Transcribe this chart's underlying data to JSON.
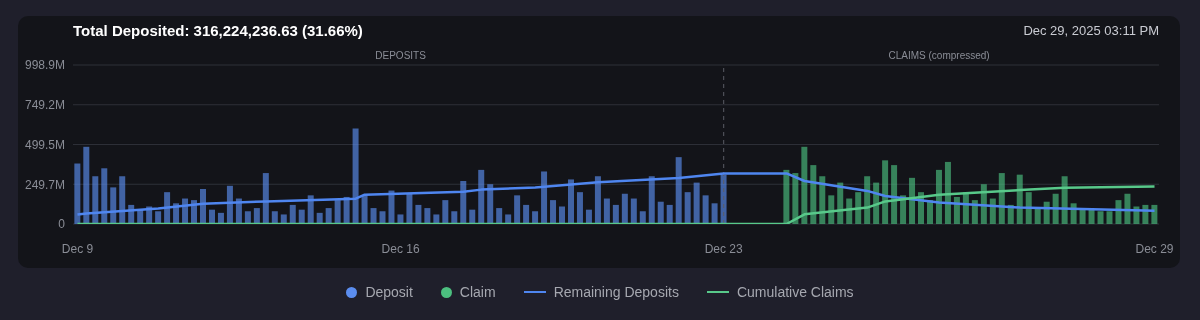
{
  "chart_data": {
    "type": "bar",
    "title": "Total Deposited: 316,224,236.63 (31.66%)",
    "annotations": [
      "Dec 29, 2025 03:11 PM",
      "DEPOSITS",
      "CLAIMS (compressed)"
    ],
    "categories": [
      "Dec 9",
      null,
      null,
      null,
      null,
      null,
      null,
      null,
      null,
      null,
      null,
      null,
      null,
      null,
      null,
      null,
      null,
      null,
      null,
      null,
      null,
      null,
      null,
      null,
      null,
      null,
      null,
      null,
      null,
      null,
      null,
      null,
      null,
      null,
      null,
      null,
      "Dec 16",
      null,
      null,
      null,
      null,
      null,
      null,
      null,
      null,
      null,
      null,
      null,
      null,
      null,
      null,
      null,
      null,
      null,
      null,
      null,
      null,
      null,
      null,
      null,
      null,
      null,
      null,
      null,
      null,
      null,
      null,
      null,
      null,
      null,
      null,
      null,
      "Dec 23",
      null,
      null,
      null,
      null,
      null,
      null,
      null,
      null,
      null,
      null,
      null,
      null,
      null,
      null,
      null,
      null,
      null,
      null,
      null,
      null,
      null,
      null,
      null,
      null,
      null,
      null,
      null,
      null,
      null,
      null,
      null,
      null,
      null,
      null,
      null,
      null,
      null,
      null,
      null,
      null,
      null,
      null,
      null,
      null,
      null,
      null,
      null,
      "Dec 29"
    ],
    "series": [
      {
        "name": "Deposit",
        "color": "#5b8def",
        "values": [
          380,
          485,
          300,
          350,
          230,
          300,
          120,
          90,
          110,
          80,
          200,
          130,
          160,
          150,
          220,
          90,
          70,
          240,
          160,
          80,
          100,
          320,
          80,
          60,
          120,
          90,
          180,
          70,
          100,
          150,
          170,
          600,
          180,
          100,
          80,
          210,
          60,
          190,
          120,
          100,
          60,
          150,
          80,
          270,
          90,
          340,
          250,
          100,
          60,
          180,
          120,
          80,
          330,
          150,
          110,
          280,
          200,
          90,
          300,
          160,
          120,
          190,
          160,
          80,
          300,
          140,
          120,
          420,
          200,
          260,
          180,
          130,
          310,
          null,
          null,
          null,
          null,
          null,
          null,
          null,
          null,
          null,
          null,
          null,
          null,
          null,
          null,
          null,
          null,
          null,
          null,
          null,
          null,
          null,
          null,
          null,
          null,
          null,
          null,
          null,
          null,
          null,
          null,
          null,
          null,
          null,
          null,
          null,
          null,
          null,
          null,
          null,
          null,
          null,
          null,
          null,
          null,
          null,
          null,
          null,
          null
        ]
      },
      {
        "name": "Claim",
        "color": "#4cbf7f",
        "values": [
          null,
          null,
          null,
          null,
          null,
          null,
          null,
          null,
          null,
          null,
          null,
          null,
          null,
          null,
          null,
          null,
          null,
          null,
          null,
          null,
          null,
          null,
          null,
          null,
          null,
          null,
          null,
          null,
          null,
          null,
          null,
          null,
          null,
          null,
          null,
          null,
          null,
          null,
          null,
          null,
          null,
          null,
          null,
          null,
          null,
          null,
          null,
          null,
          null,
          null,
          null,
          null,
          null,
          null,
          null,
          null,
          null,
          null,
          null,
          null,
          null,
          null,
          null,
          null,
          null,
          null,
          null,
          null,
          null,
          null,
          null,
          null,
          null,
          null,
          null,
          null,
          null,
          null,
          null,
          340,
          320,
          485,
          370,
          300,
          180,
          260,
          160,
          200,
          300,
          260,
          400,
          370,
          180,
          290,
          200,
          150,
          340,
          390,
          170,
          200,
          150,
          250,
          160,
          320,
          120,
          310,
          200,
          100,
          140,
          190,
          300,
          130,
          100,
          90,
          80,
          80,
          150,
          190,
          110,
          120,
          120
        ]
      },
      {
        "name": "Remaining Deposits",
        "type": "line",
        "color": "#4f86f0",
        "values": [
          60,
          66,
          null,
          null,
          null,
          null,
          null,
          null,
          null,
          98,
          null,
          null,
          null,
          null,
          127,
          null,
          null,
          null,
          null,
          null,
          null,
          142,
          null,
          null,
          null,
          null,
          null,
          null,
          null,
          null,
          null,
          159,
          184,
          null,
          null,
          null,
          null,
          null,
          null,
          null,
          null,
          null,
          null,
          203,
          null,
          216,
          null,
          null,
          null,
          null,
          null,
          230,
          null,
          null,
          null,
          null,
          null,
          null,
          262,
          null,
          null,
          null,
          null,
          null,
          null,
          null,
          null,
          289,
          null,
          null,
          null,
          null,
          318,
          null,
          null,
          null,
          null,
          null,
          null,
          318,
          null,
          270,
          null,
          null,
          null,
          null,
          null,
          null,
          208,
          null,
          176,
          null,
          null,
          null,
          null,
          null,
          135,
          null,
          null,
          null,
          null,
          null,
          null,
          null,
          null,
          103,
          null,
          null,
          null,
          null,
          null,
          null,
          null,
          null,
          null,
          null,
          null,
          null,
          null,
          null,
          83
        ]
      },
      {
        "name": "Cumulative Claims",
        "type": "line",
        "color": "#58c98a",
        "values": [
          0,
          null,
          null,
          null,
          null,
          null,
          null,
          null,
          null,
          null,
          null,
          null,
          null,
          null,
          null,
          null,
          null,
          null,
          null,
          null,
          null,
          null,
          null,
          null,
          null,
          null,
          null,
          null,
          null,
          null,
          null,
          null,
          null,
          null,
          null,
          null,
          null,
          null,
          null,
          null,
          null,
          null,
          null,
          null,
          null,
          null,
          null,
          null,
          null,
          null,
          null,
          null,
          null,
          null,
          null,
          null,
          null,
          null,
          null,
          null,
          null,
          null,
          null,
          null,
          null,
          null,
          null,
          null,
          null,
          null,
          null,
          null,
          null,
          null,
          null,
          null,
          null,
          null,
          null,
          0,
          null,
          61,
          null,
          null,
          null,
          null,
          null,
          null,
          103,
          null,
          142,
          null,
          null,
          null,
          null,
          null,
          184,
          null,
          null,
          null,
          null,
          null,
          null,
          null,
          null,
          213,
          null,
          null,
          null,
          null,
          228,
          null,
          null,
          null,
          null,
          null,
          null,
          null,
          null,
          null,
          235
        ]
      }
    ],
    "ylim": [
      0,
      998.9
    ],
    "yticks": [
      0,
      {
        "value": 249.7,
        "label": "249.7M"
      },
      {
        "value": 499.5,
        "label": "499.5M"
      },
      {
        "value": 749.2,
        "label": "749.2M"
      },
      {
        "value": 998.9,
        "label": "998.9M"
      }
    ],
    "ref_lines": [
      {
        "axis": "x",
        "value": "Dec 23",
        "line_style": "dashed",
        "color": "#5a5d66"
      }
    ],
    "grid": "y",
    "legend": "bottom"
  }
}
